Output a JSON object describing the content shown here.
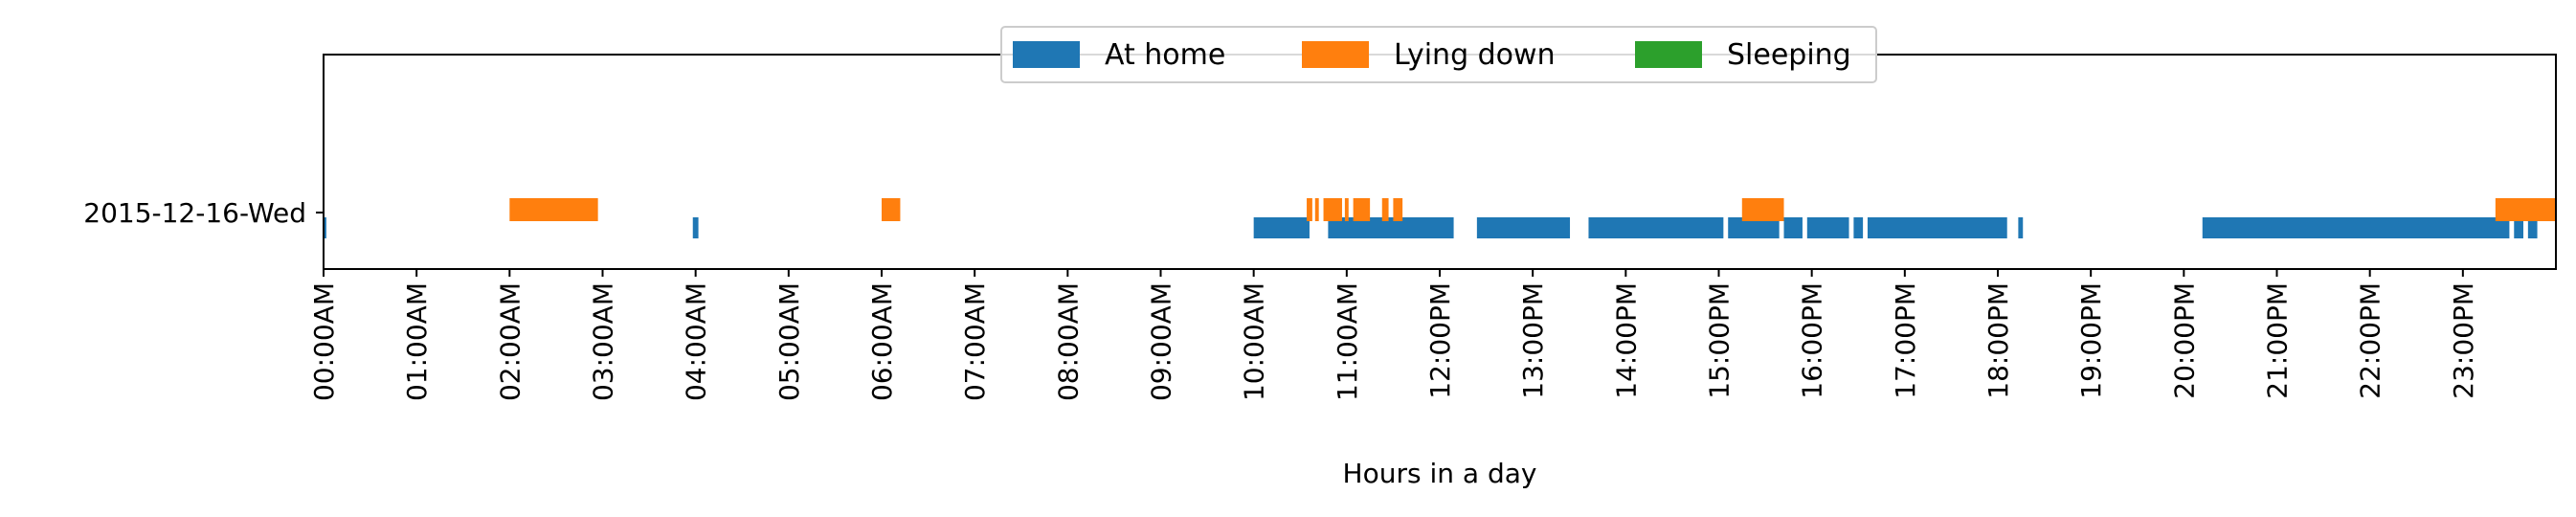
{
  "chart_data": {
    "type": "timeline",
    "title": "",
    "xlabel": "Hours in a day",
    "ylabel": "",
    "xlim": [
      0,
      24
    ],
    "x_unit": "hours",
    "x_tick_labels": [
      "00:00AM",
      "01:00AM",
      "02:00AM",
      "03:00AM",
      "04:00AM",
      "05:00AM",
      "06:00AM",
      "07:00AM",
      "08:00AM",
      "09:00AM",
      "10:00AM",
      "11:00AM",
      "12:00PM",
      "13:00PM",
      "14:00PM",
      "15:00PM",
      "16:00PM",
      "17:00PM",
      "18:00PM",
      "19:00PM",
      "20:00PM",
      "21:00PM",
      "22:00PM",
      "23:00PM"
    ],
    "categories": [
      "2015-12-16-Wed"
    ],
    "grid": false,
    "legend_position": "top-center",
    "series": [
      {
        "name": "At home",
        "color": "#1f77b4",
        "intervals": [
          [
            0.0,
            0.03
          ],
          [
            3.97,
            4.03
          ],
          [
            10.0,
            10.6
          ],
          [
            10.8,
            12.15
          ],
          [
            12.4,
            13.4
          ],
          [
            13.6,
            15.05
          ],
          [
            15.1,
            15.65
          ],
          [
            15.7,
            15.9
          ],
          [
            15.95,
            16.4
          ],
          [
            16.45,
            16.55
          ],
          [
            16.6,
            18.1
          ],
          [
            18.22,
            18.27
          ],
          [
            20.2,
            23.5
          ],
          [
            23.55,
            23.65
          ],
          [
            23.7,
            23.8
          ]
        ]
      },
      {
        "name": "Lying down",
        "color": "#ff7f0e",
        "intervals": [
          [
            2.0,
            2.95
          ],
          [
            6.0,
            6.2
          ],
          [
            10.57,
            10.63
          ],
          [
            10.66,
            10.7
          ],
          [
            10.75,
            10.95
          ],
          [
            10.98,
            11.02
          ],
          [
            11.07,
            11.25
          ],
          [
            11.38,
            11.45
          ],
          [
            11.5,
            11.6
          ],
          [
            15.25,
            15.7
          ],
          [
            23.35,
            24.0
          ]
        ]
      },
      {
        "name": "Sleeping",
        "color": "#2ca02c",
        "intervals": []
      }
    ]
  }
}
